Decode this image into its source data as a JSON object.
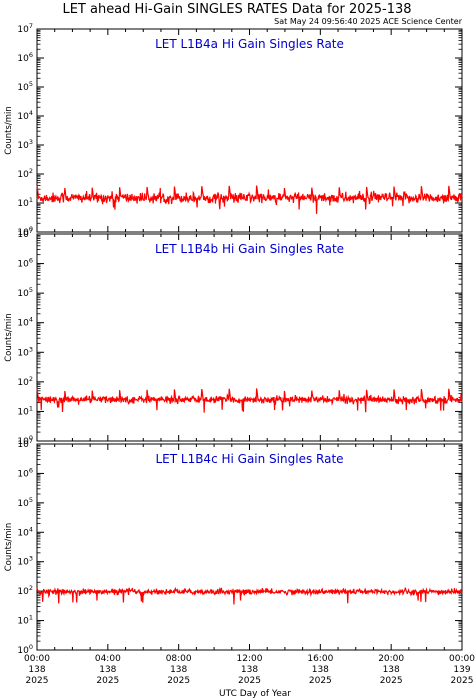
{
  "page": {
    "title": "LET ahead Hi-Gain SINGLES RATES Data for 2025-138",
    "timestamp": "Sat May 24 09:56:40 2025 ACE Science Center",
    "xlabel": "UTC Day of Year"
  },
  "colors": {
    "line": "#ff0000",
    "panel_title": "#0000cc",
    "axis": "#000000"
  },
  "chart_data": [
    {
      "type": "line",
      "title": "LET L1B4a Hi Gain Singles Rate",
      "ylabel": "Counts/min",
      "yscale": "log",
      "ylim": [
        1,
        10000000
      ],
      "xlim": [
        0,
        24
      ],
      "baseline": 15,
      "noise": 0.09,
      "spike_height": 40,
      "spike_interval_hours": 1.55,
      "series": [
        {
          "x_range_hours": [
            0,
            24
          ]
        }
      ]
    },
    {
      "type": "line",
      "title": "LET L1B4b Hi Gain Singles Rate",
      "ylabel": "Counts/min",
      "yscale": "log",
      "ylim": [
        1,
        10000000
      ],
      "xlim": [
        0,
        24
      ],
      "baseline": 25,
      "noise": 0.06,
      "spike_height": 60,
      "spike_interval_hours": 1.55,
      "series": [
        {
          "x_range_hours": [
            0,
            24
          ]
        }
      ]
    },
    {
      "type": "line",
      "title": "LET L1B4c Hi Gain Singles Rate",
      "ylabel": "Counts/min",
      "yscale": "log",
      "ylim": [
        1,
        10000000
      ],
      "xlim": [
        0,
        24
      ],
      "baseline": 95,
      "noise": 0.045,
      "spike_height": 130,
      "spike_interval_hours": 2.6,
      "series": [
        {
          "x_range_hours": [
            0,
            24
          ]
        }
      ]
    }
  ],
  "x_ticks": [
    {
      "time": "00:00",
      "doy": "138",
      "year": "2025"
    },
    {
      "time": "04:00",
      "doy": "138",
      "year": "2025"
    },
    {
      "time": "08:00",
      "doy": "138",
      "year": "2025"
    },
    {
      "time": "12:00",
      "doy": "138",
      "year": "2025"
    },
    {
      "time": "16:00",
      "doy": "138",
      "year": "2025"
    },
    {
      "time": "20:00",
      "doy": "138",
      "year": "2025"
    },
    {
      "time": "00:00",
      "doy": "139",
      "year": "2025"
    }
  ],
  "y_tick_labels": [
    {
      "base": "10",
      "exp": "0"
    },
    {
      "base": "10",
      "exp": "1"
    },
    {
      "base": "10",
      "exp": "2"
    },
    {
      "base": "10",
      "exp": "3"
    },
    {
      "base": "10",
      "exp": "4"
    },
    {
      "base": "10",
      "exp": "5"
    },
    {
      "base": "10",
      "exp": "6"
    },
    {
      "base": "10",
      "exp": "7"
    }
  ]
}
